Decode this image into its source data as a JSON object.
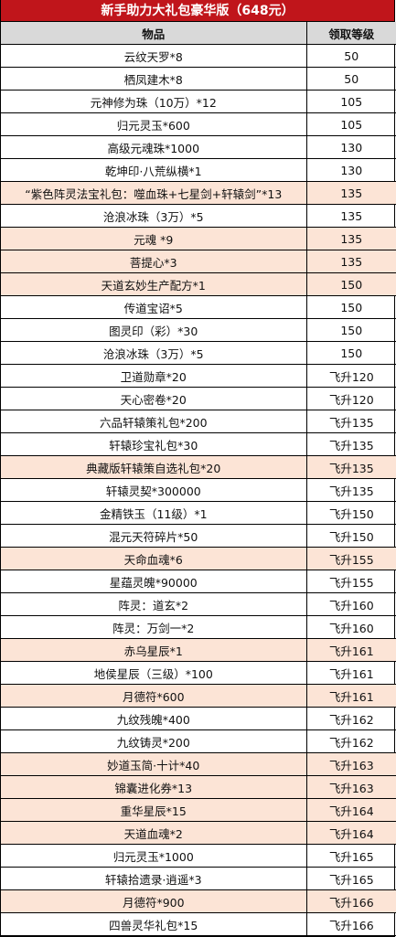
{
  "title": "新手助力大礼包豪华版（648元）",
  "headers": {
    "item": "物品",
    "level": "领取等级"
  },
  "colors": {
    "title_bg": "#c0151b",
    "header_bg": "#d9d9d9",
    "highlight_bg": "#fce4d6"
  },
  "rows": [
    {
      "item": "云纹天罗*8",
      "level": "50",
      "highlight": false
    },
    {
      "item": "栖凤建木*8",
      "level": "50",
      "highlight": false
    },
    {
      "item": "元神修为珠（10万）*12",
      "level": "105",
      "highlight": false
    },
    {
      "item": "归元灵玉*600",
      "level": "105",
      "highlight": false
    },
    {
      "item": "高级元魂珠*1000",
      "level": "130",
      "highlight": false
    },
    {
      "item": "乾坤印·八荒纵横*1",
      "level": "130",
      "highlight": false
    },
    {
      "item": "“紫色阵灵法宝礼包：噬血珠+七星剑+轩辕剑”*13",
      "level": "135",
      "highlight": true
    },
    {
      "item": "沧浪冰珠（3万）*5",
      "level": "135",
      "highlight": false
    },
    {
      "item": "元魂 *9",
      "level": "135",
      "highlight": true
    },
    {
      "item": "菩提心*3",
      "level": "135",
      "highlight": true
    },
    {
      "item": "天道玄妙生产配方*1",
      "level": "150",
      "highlight": true
    },
    {
      "item": "传道宝诏*5",
      "level": "150",
      "highlight": false
    },
    {
      "item": "图灵印（彩）*30",
      "level": "150",
      "highlight": false
    },
    {
      "item": "沧浪冰珠（3万）*5",
      "level": "150",
      "highlight": false
    },
    {
      "item": "卫道勋章*20",
      "level": "飞升120",
      "highlight": false
    },
    {
      "item": "天心密卷*20",
      "level": "飞升120",
      "highlight": false
    },
    {
      "item": "六品轩辕策礼包*200",
      "level": "飞升135",
      "highlight": false
    },
    {
      "item": "轩辕珍宝礼包*30",
      "level": "飞升135",
      "highlight": false
    },
    {
      "item": "典藏版轩辕策自选礼包*20",
      "level": "飞升135",
      "highlight": true
    },
    {
      "item": "轩辕灵契*300000",
      "level": "飞升135",
      "highlight": false
    },
    {
      "item": "金精铁玉（11级）*1",
      "level": "飞升150",
      "highlight": false
    },
    {
      "item": "混元天符碎片*50",
      "level": "飞升150",
      "highlight": false
    },
    {
      "item": "天命血魂*6",
      "level": "飞升155",
      "highlight": true
    },
    {
      "item": "星蕴灵魄*90000",
      "level": "飞升155",
      "highlight": false
    },
    {
      "item": "阵灵：道玄*2",
      "level": "飞升160",
      "highlight": false
    },
    {
      "item": "阵灵：万剑一*2",
      "level": "飞升160",
      "highlight": false
    },
    {
      "item": "赤乌星辰*1",
      "level": "飞升161",
      "highlight": true
    },
    {
      "item": "地侯星辰（三级）*100",
      "level": "飞升161",
      "highlight": false
    },
    {
      "item": "月德符*600",
      "level": "飞升161",
      "highlight": true
    },
    {
      "item": "九纹残魄*400",
      "level": "飞升162",
      "highlight": false
    },
    {
      "item": "九纹铸灵*200",
      "level": "飞升162",
      "highlight": false
    },
    {
      "item": "妙道玉简·十计*40",
      "level": "飞升163",
      "highlight": true
    },
    {
      "item": "锦囊进化券*13",
      "level": "飞升163",
      "highlight": true
    },
    {
      "item": "重华星辰*15",
      "level": "飞升164",
      "highlight": true
    },
    {
      "item": "天道血魂*2",
      "level": "飞升164",
      "highlight": true
    },
    {
      "item": "归元灵玉*1000",
      "level": "飞升165",
      "highlight": false
    },
    {
      "item": "轩辕拾遗录·逍遥*3",
      "level": "飞升165",
      "highlight": false
    },
    {
      "item": "月德符*900",
      "level": "飞升166",
      "highlight": true
    },
    {
      "item": "四兽灵华礼包*15",
      "level": "飞升166",
      "highlight": false
    }
  ]
}
